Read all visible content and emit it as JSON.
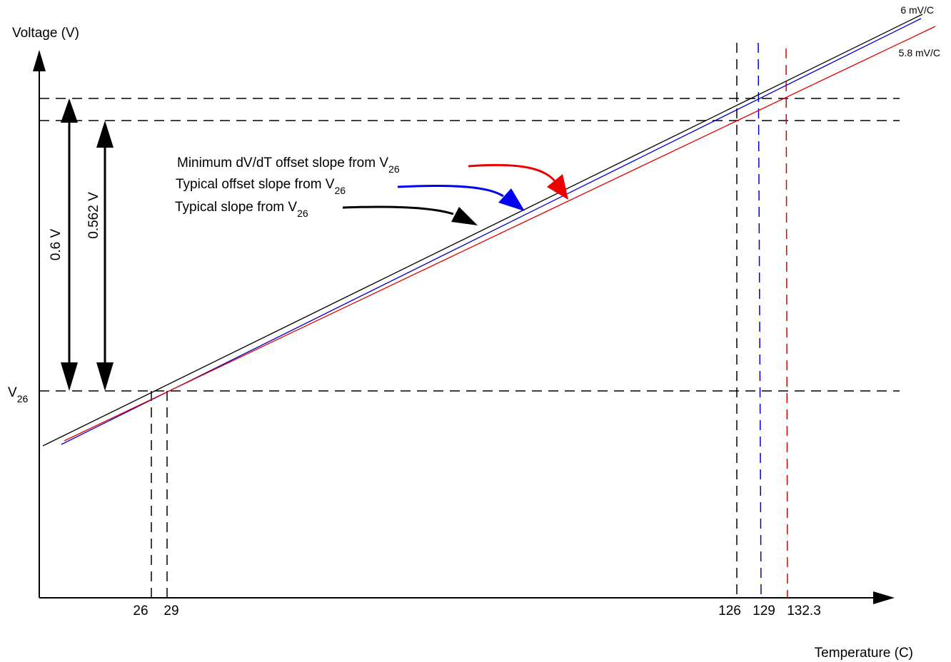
{
  "axes": {
    "y_label": "Voltage (V)",
    "x_label": "Temperature (C)",
    "v26_main": "V",
    "v26_sub": "26"
  },
  "x_ticks": [
    "26",
    "29",
    "126",
    "129",
    "132.3"
  ],
  "dimensions": {
    "span_06": "0.6 V",
    "span_0562": "0.562 V"
  },
  "slopes": {
    "black": "6 mV/C",
    "red": "5.8 mV/C"
  },
  "annotations": {
    "red_text": "Minimum dV/dT offset slope from V",
    "blue_text": "Typical offset slope from V",
    "black_text": "Typical slope from V",
    "sub": "26"
  },
  "colors": {
    "typical": "#000000",
    "typical_offset": "#0000cc",
    "minimum_offset": "#dd0000"
  }
}
